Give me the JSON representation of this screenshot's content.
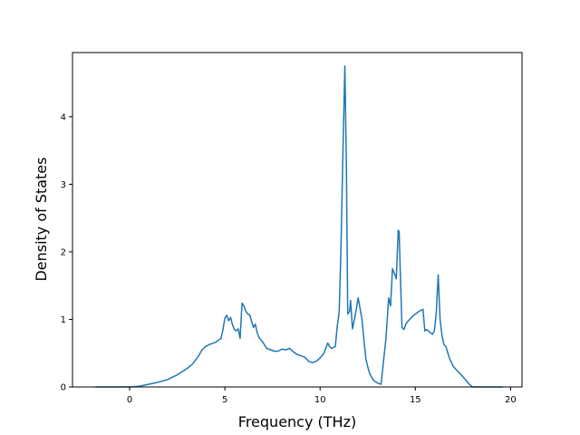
{
  "chart_data": {
    "type": "line",
    "title": "",
    "xlabel": "Frequency (THz)",
    "ylabel": "Density of States",
    "xlim": [
      -3.0,
      20.6
    ],
    "ylim": [
      0,
      4.95
    ],
    "xticks": [
      0,
      5,
      10,
      15,
      20
    ],
    "yticks": [
      0,
      1,
      2,
      3,
      4
    ],
    "grid": false,
    "legend": "none",
    "series": [
      {
        "color": "#1f77b4",
        "x": [
          -1.8,
          0.0,
          0.5,
          1.0,
          1.5,
          2.0,
          2.5,
          3.0,
          3.3,
          3.6,
          3.8,
          4.0,
          4.2,
          4.5,
          4.7,
          4.8,
          4.9,
          5.0,
          5.1,
          5.2,
          5.3,
          5.4,
          5.5,
          5.6,
          5.7,
          5.8,
          5.9,
          6.0,
          6.1,
          6.2,
          6.3,
          6.5,
          6.6,
          6.7,
          6.8,
          7.0,
          7.2,
          7.4,
          7.6,
          7.8,
          8.0,
          8.2,
          8.4,
          8.6,
          8.8,
          9.0,
          9.2,
          9.4,
          9.6,
          9.8,
          10.0,
          10.2,
          10.4,
          10.5,
          10.6,
          10.8,
          10.9,
          11.0,
          11.1,
          11.2,
          11.3,
          11.38,
          11.45,
          11.55,
          11.6,
          11.7,
          11.8,
          11.9,
          12.0,
          12.2,
          12.3,
          12.4,
          12.5,
          12.6,
          12.8,
          13.0,
          13.2,
          13.45,
          13.5,
          13.6,
          13.7,
          13.8,
          13.9,
          14.0,
          14.1,
          14.15,
          14.2,
          14.3,
          14.4,
          14.5,
          14.6,
          14.8,
          15.0,
          15.2,
          15.4,
          15.5,
          15.6,
          15.8,
          15.9,
          16.0,
          16.1,
          16.2,
          16.3,
          16.4,
          16.5,
          16.6,
          16.8,
          17.0,
          17.5,
          17.8,
          18.0,
          19.0,
          19.6
        ],
        "y": [
          0.0,
          0.0,
          0.01,
          0.04,
          0.07,
          0.11,
          0.18,
          0.27,
          0.34,
          0.45,
          0.55,
          0.6,
          0.63,
          0.66,
          0.7,
          0.72,
          0.85,
          1.02,
          1.06,
          0.98,
          1.03,
          0.92,
          0.85,
          0.83,
          0.86,
          0.72,
          1.24,
          1.2,
          1.12,
          1.08,
          1.07,
          0.88,
          0.93,
          0.8,
          0.73,
          0.66,
          0.57,
          0.55,
          0.53,
          0.53,
          0.56,
          0.55,
          0.57,
          0.52,
          0.48,
          0.46,
          0.44,
          0.38,
          0.36,
          0.38,
          0.43,
          0.5,
          0.65,
          0.6,
          0.57,
          0.6,
          0.9,
          1.1,
          2.1,
          3.5,
          4.75,
          3.3,
          1.08,
          1.12,
          1.28,
          0.86,
          1.0,
          1.15,
          1.32,
          1.0,
          0.7,
          0.42,
          0.3,
          0.2,
          0.1,
          0.06,
          0.04,
          0.7,
          0.9,
          1.32,
          1.2,
          1.75,
          1.68,
          1.6,
          2.32,
          2.3,
          1.8,
          0.88,
          0.85,
          0.93,
          0.97,
          1.03,
          1.08,
          1.12,
          1.15,
          0.83,
          0.85,
          0.8,
          0.78,
          0.83,
          1.1,
          1.66,
          1.0,
          0.76,
          0.63,
          0.6,
          0.42,
          0.3,
          0.15,
          0.05,
          0.0,
          0.0,
          0.0
        ]
      }
    ]
  }
}
